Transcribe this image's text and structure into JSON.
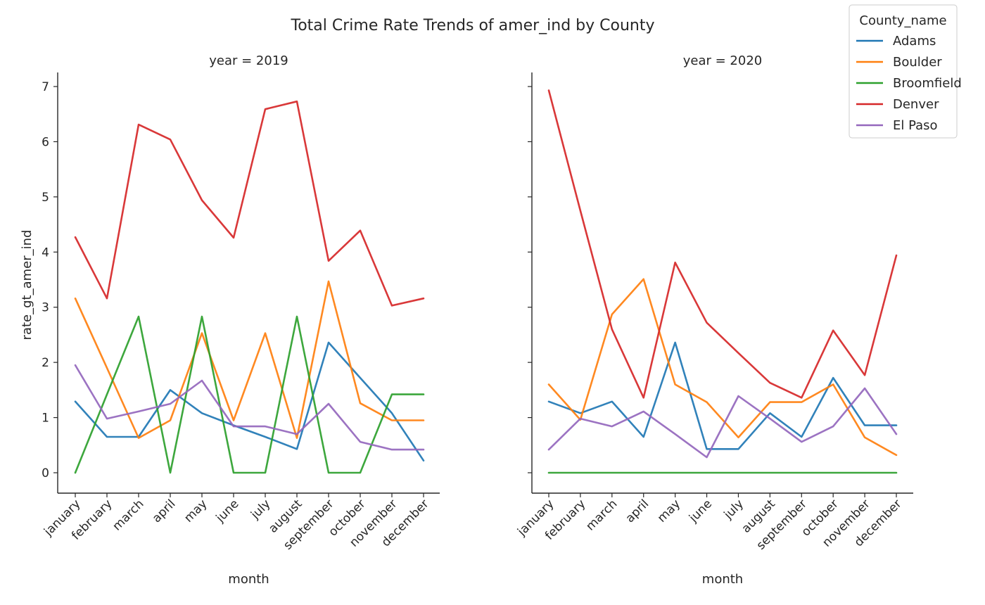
{
  "chart_data": {
    "type": "line",
    "title": "Total Crime Rate Trends of amer_ind by County",
    "xlabel": "month",
    "ylabel": "rate_gt_amer_ind",
    "ylim": [
      -0.35,
      7.25
    ],
    "yticks": [
      "0",
      "1",
      "2",
      "3",
      "4",
      "5",
      "6",
      "7"
    ],
    "categories": [
      "january",
      "february",
      "march",
      "april",
      "may",
      "june",
      "july",
      "august",
      "september",
      "october",
      "november",
      "december"
    ],
    "grid": false,
    "legend": {
      "title": "County_name",
      "placement": "top-right"
    },
    "series_styles": [
      {
        "name": "Adams",
        "color": "#1f77b4"
      },
      {
        "name": "Boulder",
        "color": "#ff7f0e"
      },
      {
        "name": "Broomfield",
        "color": "#2ca02c"
      },
      {
        "name": "Denver",
        "color": "#d62728"
      },
      {
        "name": "El Paso",
        "color": "#9467bd"
      }
    ],
    "panels": [
      {
        "label": "year = 2019",
        "series": [
          {
            "name": "Adams",
            "values": [
              1.29,
              0.65,
              0.65,
              1.5,
              1.08,
              0.86,
              0.65,
              0.43,
              2.36,
              1.72,
              1.08,
              0.22
            ]
          },
          {
            "name": "Boulder",
            "values": [
              3.16,
              1.9,
              0.63,
              0.95,
              2.53,
              0.95,
              2.53,
              0.63,
              3.47,
              1.26,
              0.95,
              0.95
            ]
          },
          {
            "name": "Broomfield",
            "values": [
              0.0,
              1.42,
              2.83,
              0.0,
              2.83,
              0.0,
              0.0,
              2.83,
              0.0,
              0.0,
              1.42,
              1.42
            ]
          },
          {
            "name": "Denver",
            "values": [
              4.27,
              3.16,
              6.31,
              6.04,
              4.94,
              4.26,
              6.59,
              6.73,
              3.84,
              4.39,
              3.03,
              3.16
            ]
          },
          {
            "name": "El Paso",
            "values": [
              1.95,
              0.98,
              1.11,
              1.25,
              1.67,
              0.84,
              0.84,
              0.7,
              1.25,
              0.56,
              0.42,
              0.42
            ]
          }
        ]
      },
      {
        "label": "year = 2020",
        "series": [
          {
            "name": "Adams",
            "values": [
              1.29,
              1.08,
              1.29,
              0.65,
              2.36,
              0.43,
              0.43,
              1.08,
              0.65,
              1.72,
              0.86,
              0.86
            ]
          },
          {
            "name": "Boulder",
            "values": [
              1.6,
              0.96,
              2.87,
              3.51,
              1.6,
              1.28,
              0.64,
              1.28,
              1.28,
              1.6,
              0.64,
              0.32
            ]
          },
          {
            "name": "Broomfield",
            "values": [
              0,
              0,
              0,
              0,
              0,
              0,
              0,
              0,
              0,
              0,
              0,
              0
            ]
          },
          {
            "name": "Denver",
            "values": [
              6.93,
              4.75,
              2.6,
              1.36,
              3.81,
              2.72,
              2.17,
              1.63,
              1.36,
              2.58,
              1.77,
              3.94
            ]
          },
          {
            "name": "El Paso",
            "values": [
              0.42,
              0.98,
              0.84,
              1.11,
              0.7,
              0.28,
              1.39,
              0.98,
              0.56,
              0.84,
              1.53,
              0.7
            ]
          }
        ]
      }
    ]
  }
}
